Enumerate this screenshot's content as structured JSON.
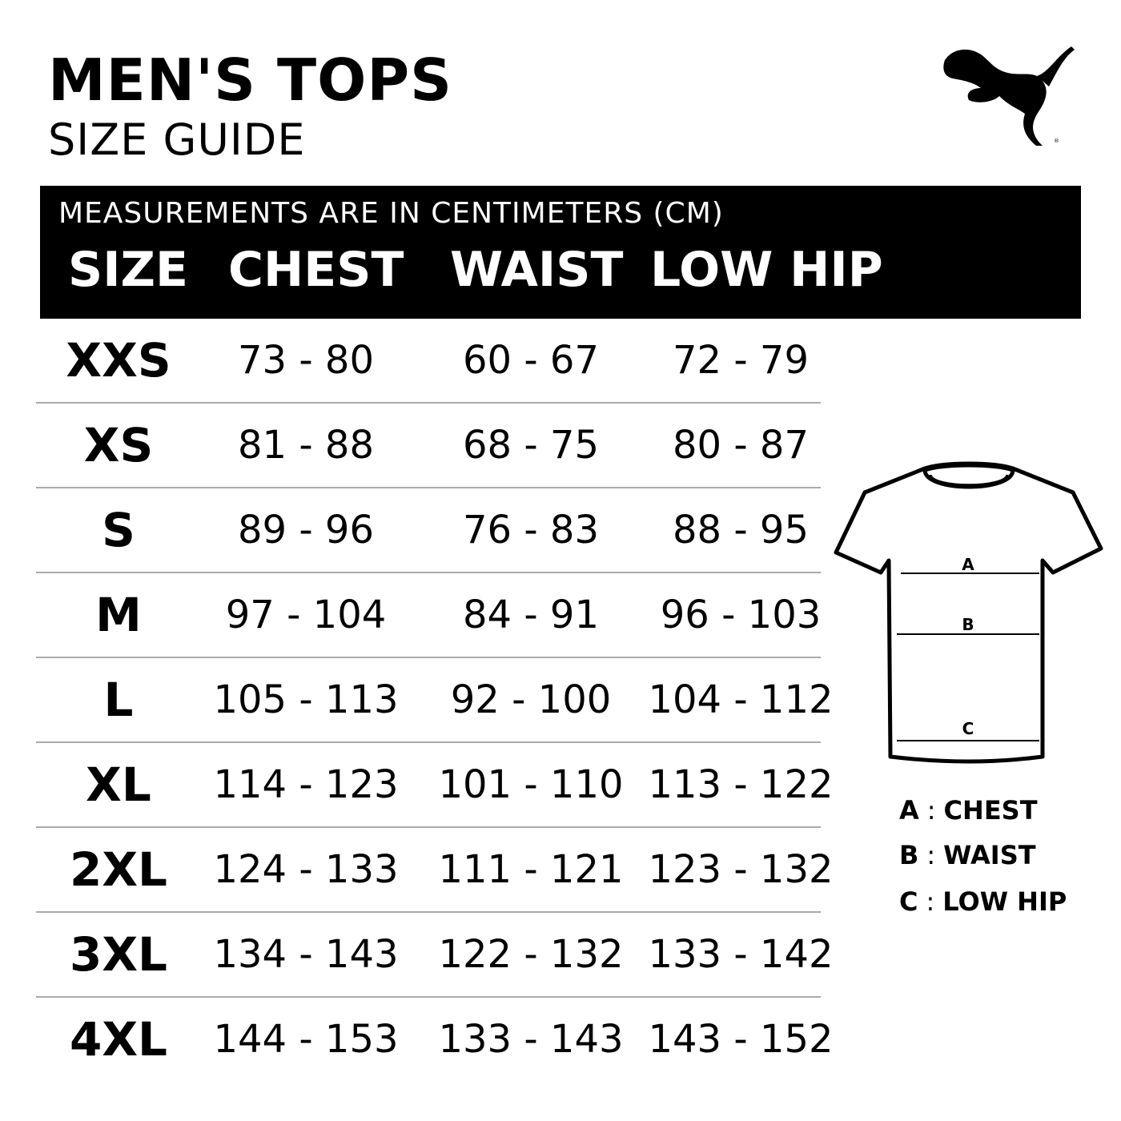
{
  "header": {
    "title": "MEN'S TOPS",
    "subtitle": "SIZE GUIDE",
    "logo": "PUMA"
  },
  "table": {
    "note": "MEASUREMENTS ARE IN CENTIMETERS (CM)",
    "columns": [
      "SIZE",
      "CHEST",
      "WAIST",
      "LOW HIP"
    ],
    "rows": [
      [
        "XXS",
        "73 - 80",
        "60 - 67",
        "72 - 79"
      ],
      [
        "XS",
        "81 - 88",
        "68 - 75",
        "80 - 87"
      ],
      [
        "S",
        "89 - 96",
        "76 - 83",
        "88 - 95"
      ],
      [
        "M",
        "97 - 104",
        "84 - 91",
        "96 - 103"
      ],
      [
        "L",
        "105 - 113",
        "92 - 100",
        "104 - 112"
      ],
      [
        "XL",
        "114 - 123",
        "101 - 110",
        "113 - 122"
      ],
      [
        "2XL",
        "124 - 133",
        "111 - 121",
        "123 - 132"
      ],
      [
        "3XL",
        "134 - 143",
        "122 - 132",
        "133 - 142"
      ],
      [
        "4XL",
        "144 - 153",
        "133 - 143",
        "143 - 152"
      ]
    ]
  },
  "diagram": {
    "marks": [
      "A",
      "B",
      "C"
    ],
    "legend": [
      {
        "key": "A",
        "sep": ":",
        "label": "CHEST"
      },
      {
        "key": "B",
        "sep": ":",
        "label": "WAIST"
      },
      {
        "key": "C",
        "sep": ":",
        "label": "LOW HIP"
      }
    ]
  }
}
